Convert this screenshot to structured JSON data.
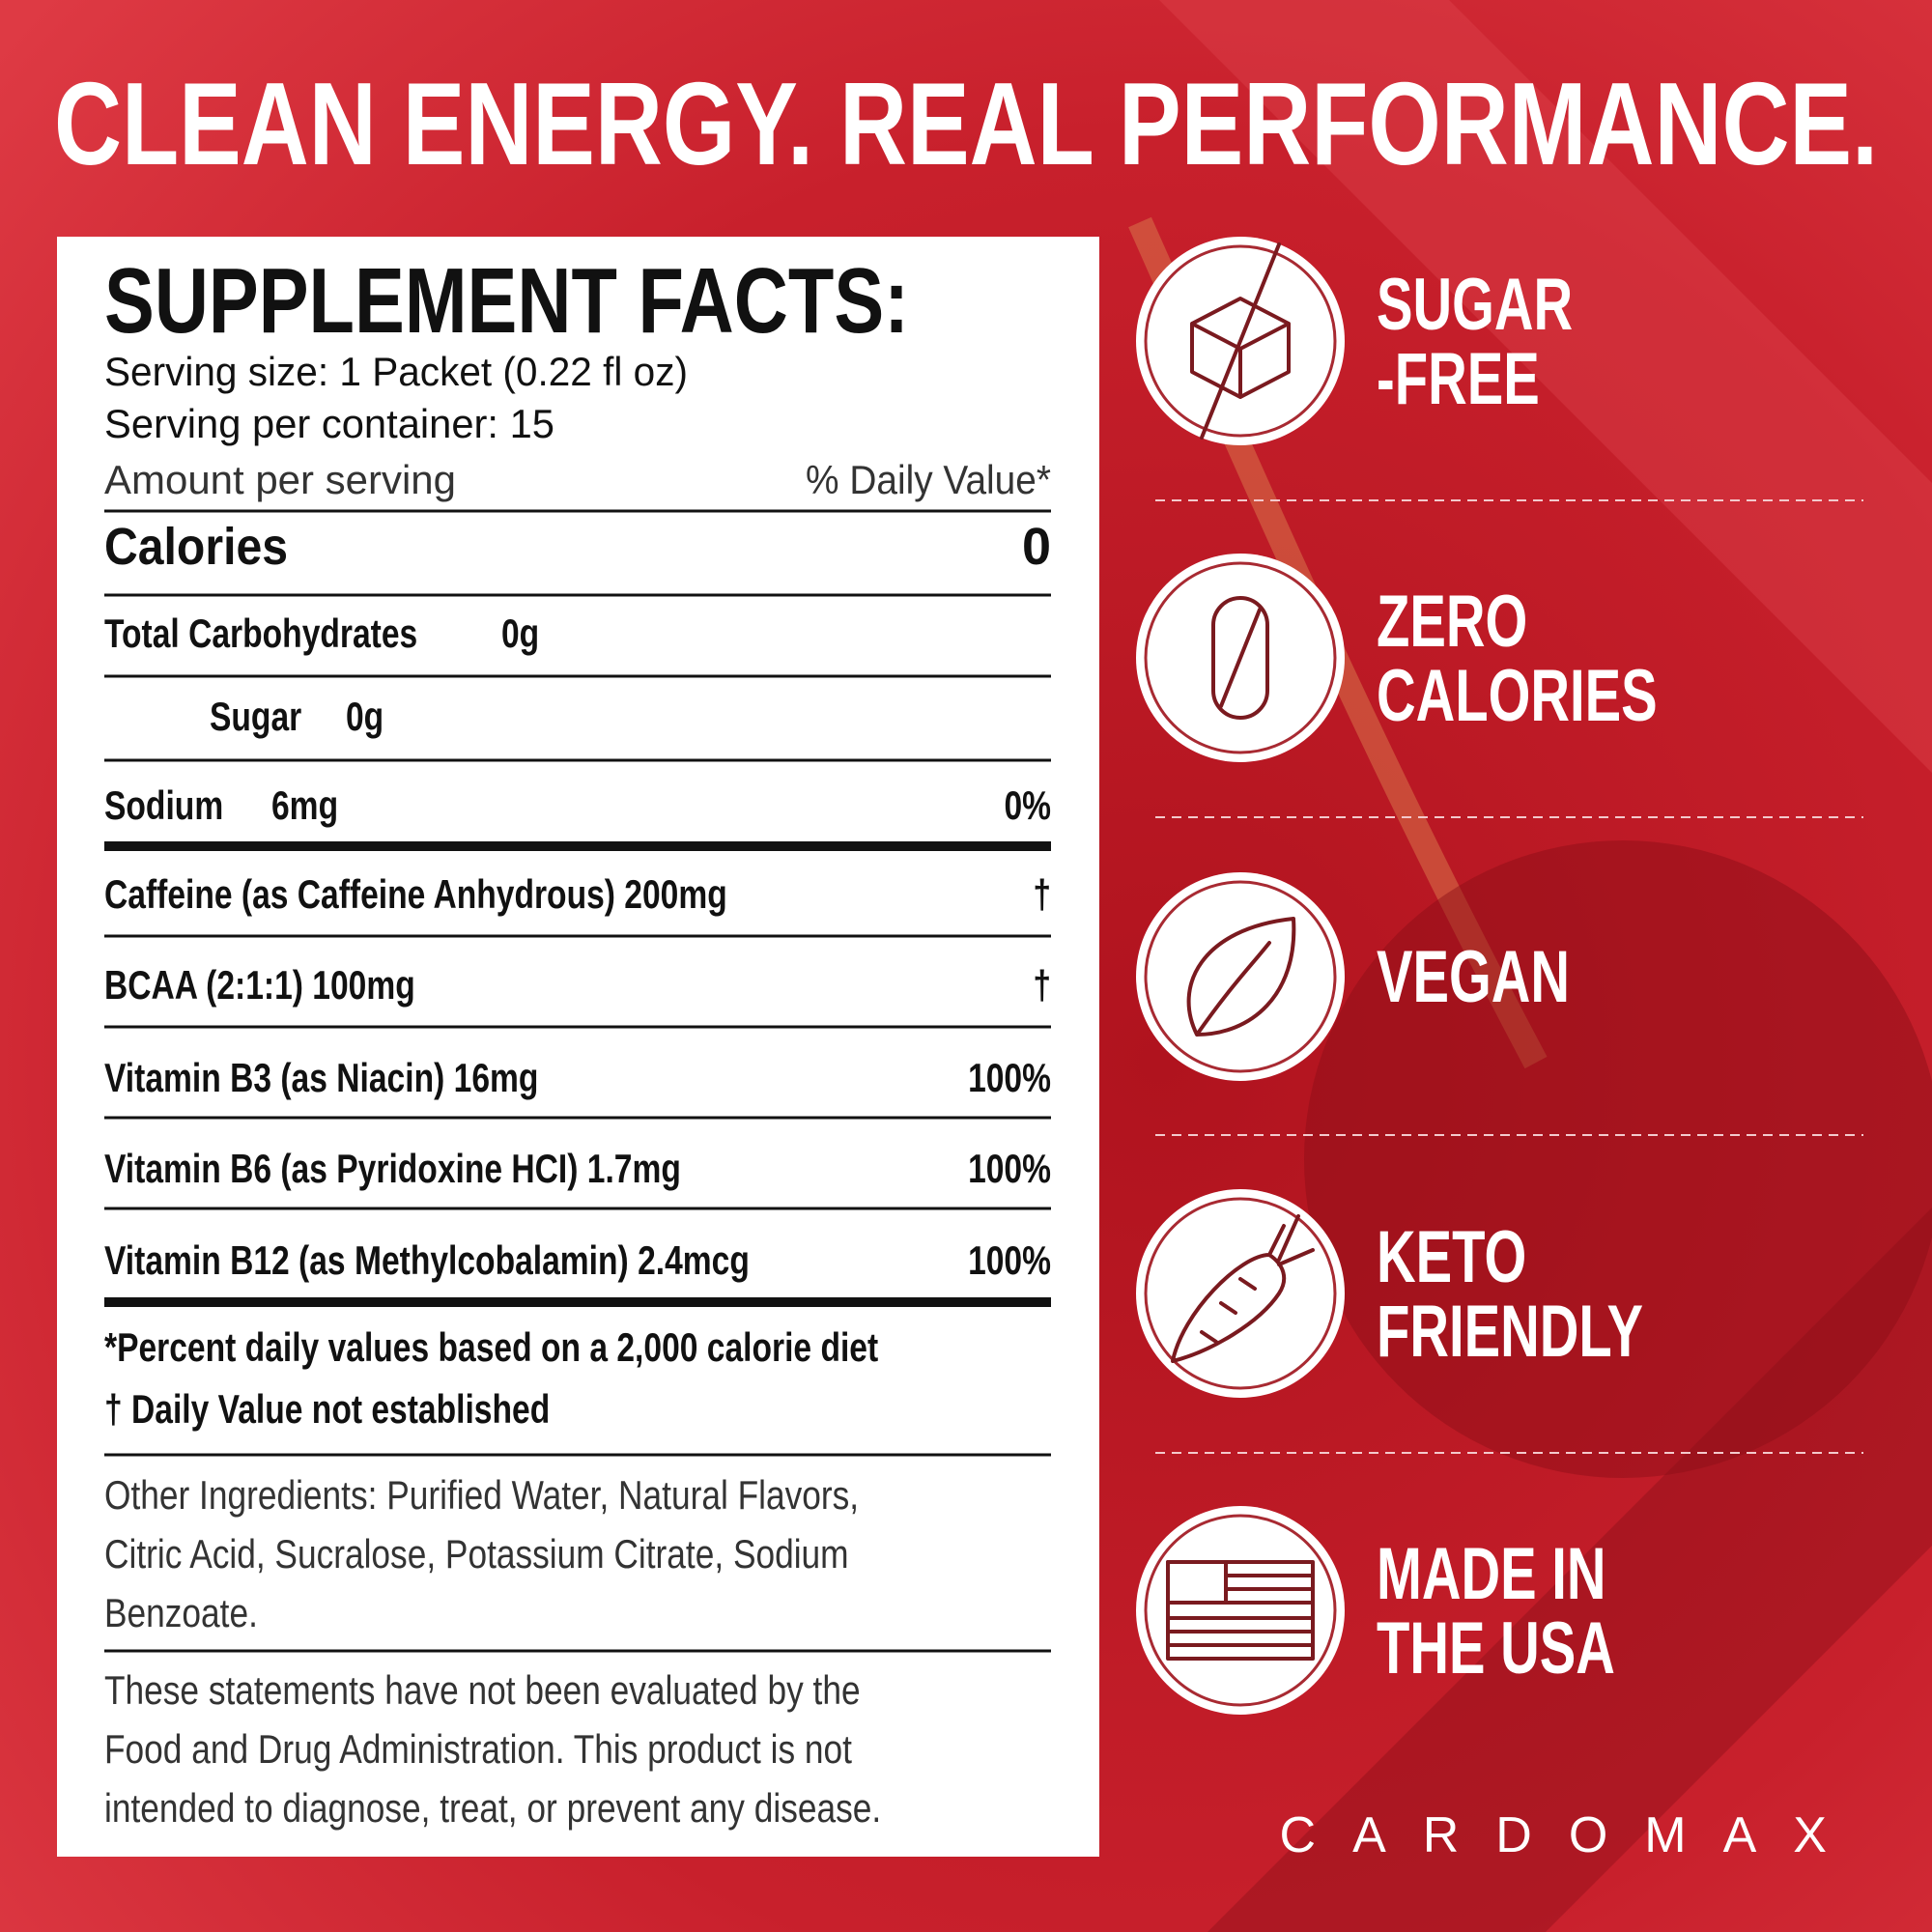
{
  "title": "CLEAN ENERGY. REAL PERFORMANCE.",
  "facts": {
    "heading": "SUPPLEMENT FACTS:",
    "serving_size": "Serving size: 1 Packet (0.22 fl oz)",
    "servings": "Serving per container: 15",
    "amount_label": "Amount per serving",
    "dv_label": "% Daily Value*",
    "calories": {
      "name": "Calories",
      "dv": "0"
    },
    "rows": [
      {
        "name": "Total Carbohydrates",
        "amount": "0g"
      },
      {
        "name": "Sugar",
        "amount": "0g"
      },
      {
        "name": "Sodium",
        "amount": "6mg",
        "dv": "0%"
      },
      {
        "name": "Caffeine (as Caffeine Anhydrous) 200mg",
        "dv": "†"
      },
      {
        "name": "BCAA (2:1:1) 100mg",
        "dv": "†"
      },
      {
        "name": "Vitamin B3 (as Niacin) 16mg",
        "dv": "100%"
      },
      {
        "name": "Vitamin B6 (as Pyridoxine HCI) 1.7mg",
        "dv": "100%"
      },
      {
        "name": "Vitamin B12 (as Methylcobalamin) 2.4mcg",
        "dv": "100%"
      }
    ],
    "footnotes": [
      "*Percent daily values based on a 2,000 calorie diet",
      "† Daily Value not established"
    ],
    "other_ingredients": [
      "Other Ingredients: Purified Water, Natural Flavors,",
      "Citric Acid, Sucralose, Potassium Citrate, Sodium",
      "Benzoate."
    ],
    "disclaimer": [
      "These statements have not been evaluated by the",
      "Food and Drug Administration. This product is not",
      "intended to diagnose, treat, or prevent any disease."
    ]
  },
  "badges": [
    {
      "lines": [
        "SUGAR",
        "-FREE"
      ]
    },
    {
      "lines": [
        "ZERO",
        "CALORIES"
      ]
    },
    {
      "lines": [
        "VEGAN"
      ]
    },
    {
      "lines": [
        "KETO",
        "FRIENDLY"
      ]
    },
    {
      "lines": [
        "MADE IN",
        "THE USA"
      ]
    }
  ],
  "brand": "CARDOMAX"
}
